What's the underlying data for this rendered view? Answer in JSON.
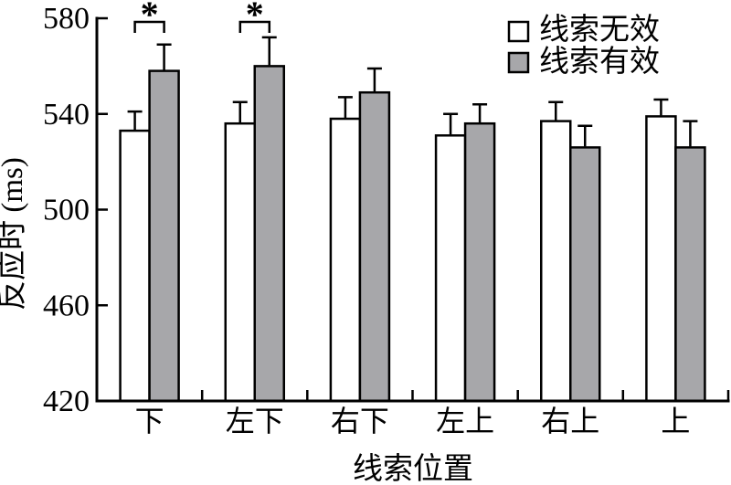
{
  "figure": {
    "background": "#ffffff",
    "stroke_color": "#000000"
  },
  "chart_data": {
    "type": "bar",
    "title": "",
    "xlabel": "线索位置",
    "ylabel": "反应时 (ms)",
    "categories": [
      "下",
      "左下",
      "右下",
      "左上",
      "右上",
      "上"
    ],
    "series": [
      {
        "name": "线索无效",
        "fill": "#ffffff",
        "values": [
          533,
          536,
          538,
          531,
          537,
          539
        ],
        "errors_plus": [
          8,
          9,
          9,
          9,
          8,
          7
        ]
      },
      {
        "name": "线索有效",
        "fill": "#a7a7aa",
        "values": [
          558,
          560,
          549,
          536,
          526,
          526
        ],
        "errors_plus": [
          11,
          12,
          10,
          8,
          9,
          11
        ]
      }
    ],
    "ylim": [
      420,
      580
    ],
    "yticks": [
      420,
      460,
      500,
      540,
      580
    ],
    "grid": false,
    "legend_position": "top-right",
    "significance": [
      {
        "category": "下",
        "label": "*"
      },
      {
        "category": "左下",
        "label": "*"
      }
    ]
  }
}
